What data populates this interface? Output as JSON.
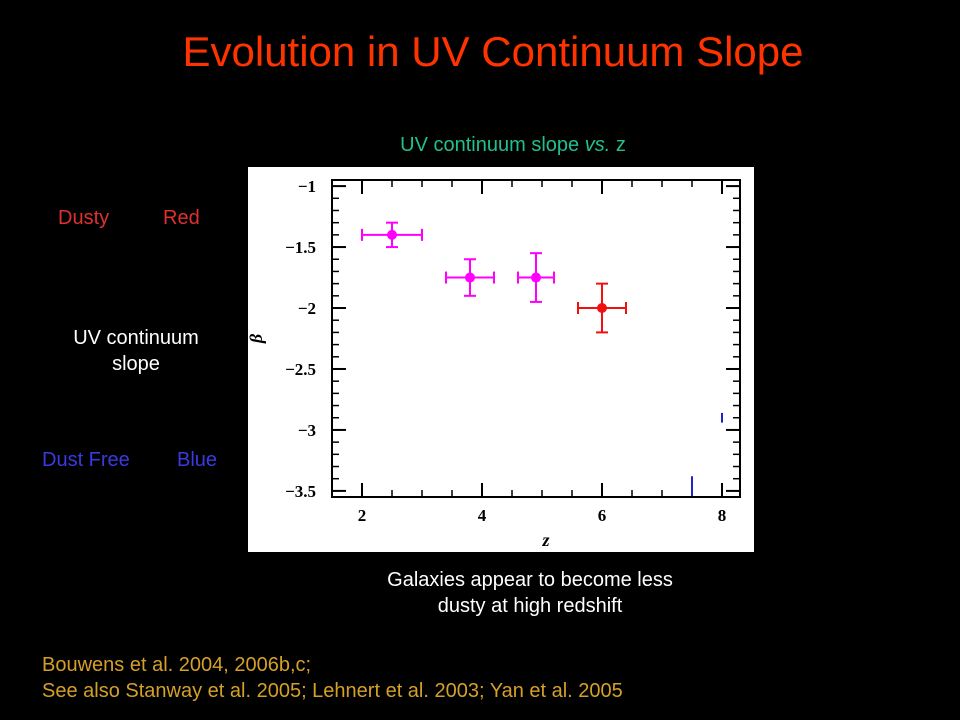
{
  "slide": {
    "title": "Evolution in UV Continuum Slope",
    "plot_heading_pre": "UV continuum slope ",
    "plot_heading_italic": "vs.",
    "plot_heading_post": " z",
    "left_labels": {
      "dusty": "Dusty",
      "red": "Red",
      "slope_line1": "UV continuum",
      "slope_line2": "slope",
      "dust_free": "Dust Free",
      "blue": "Blue"
    },
    "caption_line1": "Galaxies appear to become less",
    "caption_line2": "dusty at high redshift",
    "references": [
      "Bouwens et al. 2004, 2006b,c;",
      "See also Stanway et al. 2005; Lehnert et al. 2003; Yan et al. 2005"
    ],
    "colors": {
      "title": "#ff3300",
      "heading": "#20c090",
      "red_label": "#e03030",
      "blue_label": "#3a3ae0",
      "references": "#d4a028",
      "magenta": "#ff00ff",
      "red_point": "#ee1111",
      "upper_limit": "#2222cc"
    }
  },
  "chart_data": {
    "type": "scatter",
    "xlabel": "z",
    "ylabel": "β",
    "xlim": [
      1.5,
      8.3
    ],
    "ylim": [
      -3.55,
      -0.95
    ],
    "x_ticks": [
      2,
      4,
      6,
      8
    ],
    "y_ticks": [
      -1,
      -1.5,
      -2,
      -2.5,
      -3,
      -3.5
    ],
    "x_tick_labels": [
      "2",
      "4",
      "6",
      "8"
    ],
    "y_tick_labels": [
      "−1",
      "−1.5",
      "−2",
      "−2.5",
      "−3",
      "−3.5"
    ],
    "points": [
      {
        "x": 2.5,
        "y": -1.4,
        "xerr": 0.5,
        "yerr": 0.1,
        "color": "magenta"
      },
      {
        "x": 3.8,
        "y": -1.75,
        "xerr": 0.4,
        "yerr": 0.15,
        "color": "magenta"
      },
      {
        "x": 4.9,
        "y": -1.75,
        "xerr": 0.3,
        "yerr": 0.2,
        "color": "magenta"
      },
      {
        "x": 6.0,
        "y": -2.0,
        "xerr": 0.4,
        "yerr": 0.2,
        "color": "red_point"
      }
    ],
    "limit_marks": [
      {
        "x": 7.5,
        "y_from": -3.55,
        "y_to": -3.38
      },
      {
        "x": 8.0,
        "y_from": -2.94,
        "y_to": -2.86
      }
    ],
    "grid": false
  }
}
